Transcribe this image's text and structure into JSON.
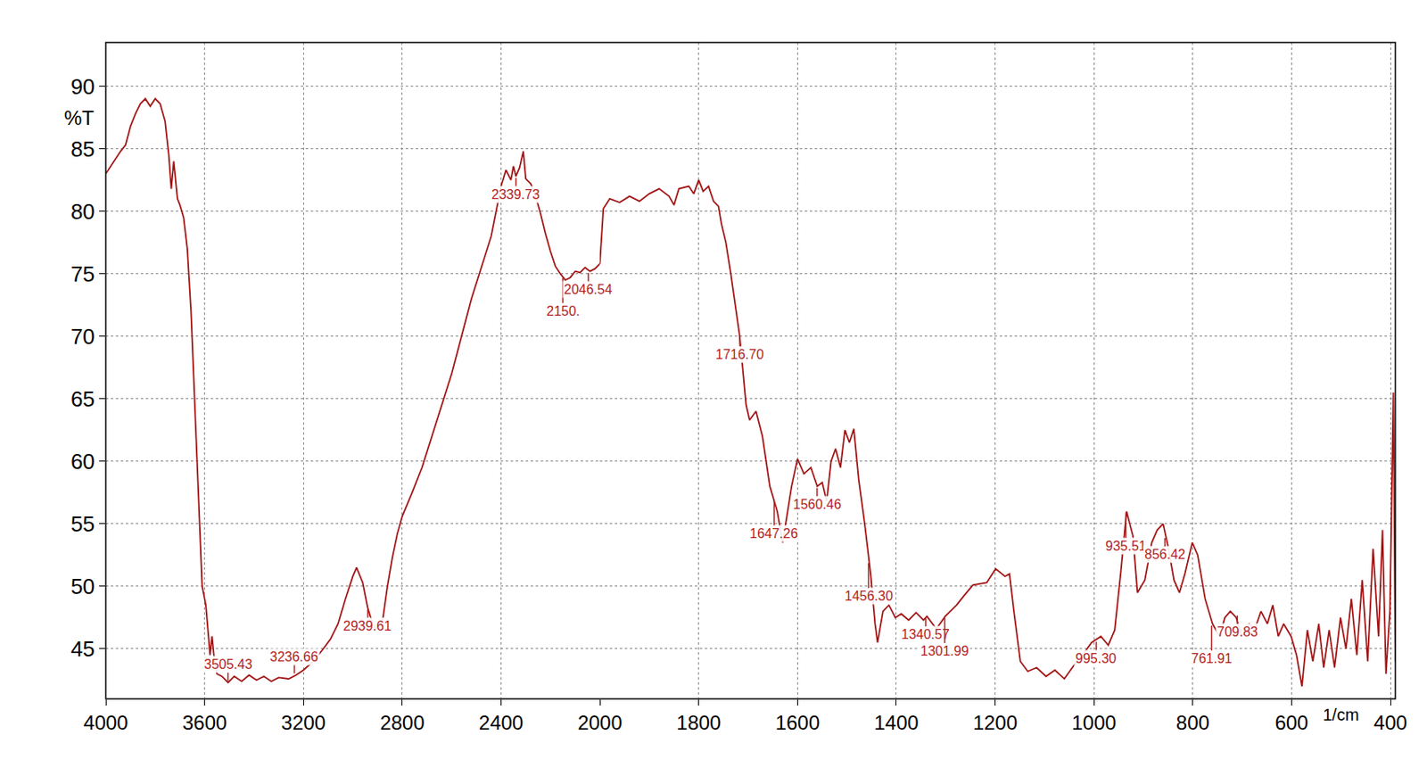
{
  "chart_data": {
    "type": "line",
    "x_label": "1/cm",
    "y_label": "%T",
    "xlim": [
      4000,
      390
    ],
    "ylim": [
      41,
      93.5
    ],
    "xticks": [
      4000,
      3600,
      3200,
      2800,
      2400,
      2000,
      1800,
      1600,
      1400,
      1200,
      1000,
      800,
      600,
      400
    ],
    "yticks": [
      45,
      50,
      55,
      60,
      65,
      70,
      75,
      80,
      85,
      90
    ],
    "grid": true,
    "color": "#a31515",
    "x": [
      4000,
      3980,
      3960,
      3940,
      3920,
      3900,
      3880,
      3860,
      3840,
      3820,
      3800,
      3780,
      3760,
      3745,
      3735,
      3725,
      3710,
      3700,
      3685,
      3670,
      3655,
      3640,
      3625,
      3610,
      3595,
      3585,
      3578,
      3570,
      3560,
      3550,
      3530,
      3505,
      3480,
      3450,
      3420,
      3390,
      3360,
      3330,
      3300,
      3260,
      3230,
      3200,
      3160,
      3120,
      3090,
      3060,
      3030,
      3000,
      2985,
      2960,
      2940,
      2920,
      2905,
      2880,
      2860,
      2840,
      2820,
      2800,
      2780,
      2760,
      2720,
      2680,
      2640,
      2600,
      2560,
      2520,
      2480,
      2440,
      2420,
      2400,
      2380,
      2360,
      2350,
      2340,
      2325,
      2310,
      2300,
      2280,
      2260,
      2240,
      2220,
      2200,
      2180,
      2160,
      2140,
      2120,
      2100,
      2080,
      2060,
      2040,
      2020,
      2000,
      1993,
      1980,
      1960,
      1940,
      1920,
      1900,
      1880,
      1860,
      1850,
      1840,
      1820,
      1810,
      1800,
      1791,
      1780,
      1770,
      1760,
      1754,
      1745,
      1735,
      1726,
      1717,
      1704,
      1697,
      1684,
      1671,
      1656,
      1641,
      1630,
      1622,
      1612,
      1600,
      1587,
      1573,
      1560,
      1550,
      1541,
      1532,
      1523,
      1513,
      1504,
      1495,
      1486,
      1476,
      1464,
      1452,
      1443,
      1438,
      1427,
      1415,
      1402,
      1390,
      1375,
      1360,
      1345,
      1338,
      1319,
      1301,
      1278,
      1264,
      1245,
      1217,
      1199,
      1180,
      1171,
      1162,
      1149,
      1134,
      1116,
      1097,
      1079,
      1060,
      1042,
      1023,
      1005,
      986,
      971,
      958,
      946,
      934,
      921,
      912,
      897,
      883,
      872,
      860,
      849,
      838,
      827,
      816,
      801,
      790,
      775,
      760,
      746,
      735,
      724,
      712,
      701,
      686,
      675,
      662,
      649,
      638,
      627,
      616,
      601,
      590,
      579,
      568,
      557,
      545,
      535,
      524,
      513,
      501,
      490,
      479,
      468,
      457,
      446,
      435,
      424,
      416,
      409,
      401,
      394,
      390
    ],
    "values": [
      83,
      83.6,
      84.2,
      84.8,
      85.3,
      86.8,
      87.8,
      88.6,
      89,
      88.4,
      89,
      88.6,
      87.2,
      84.5,
      81.8,
      84,
      81,
      80.5,
      79.5,
      77,
      72,
      65,
      57,
      50,
      48.5,
      46,
      44.5,
      46,
      44,
      43,
      42.8,
      42.3,
      42.8,
      42.4,
      42.9,
      42.5,
      42.8,
      42.4,
      42.7,
      42.6,
      42.9,
      43.3,
      44,
      45,
      45.8,
      47,
      49,
      50.8,
      51.5,
      50.3,
      48.3,
      47,
      46.6,
      47.2,
      50,
      52.3,
      54.2,
      55.6,
      56.5,
      57.5,
      59.5,
      62,
      64.5,
      67,
      70,
      73,
      75.5,
      78,
      80,
      82,
      83.3,
      82.5,
      83.6,
      82.8,
      83.5,
      84.8,
      82.6,
      82.2,
      81.2,
      79.8,
      78.2,
      76.8,
      75.6,
      75,
      74.5,
      74.7,
      75.2,
      75.1,
      75.5,
      75.2,
      75.4,
      75.8,
      80.2,
      81,
      80.7,
      81.2,
      80.8,
      81.4,
      81.8,
      81.2,
      80.5,
      81.8,
      82,
      81.4,
      82.5,
      81.6,
      82,
      80.8,
      80.4,
      79,
      77.5,
      75,
      72.5,
      70,
      64.5,
      63.3,
      64,
      62,
      58,
      56,
      53.5,
      55.5,
      58,
      60.2,
      59,
      59.5,
      58,
      58.3,
      56.8,
      60,
      61,
      59.5,
      62.5,
      61.5,
      62.6,
      58.5,
      55,
      51,
      47,
      45.5,
      48,
      48.5,
      47.5,
      47.8,
      47.3,
      47.9,
      47.3,
      47.6,
      46.6,
      47.6,
      48.5,
      49.2,
      50.1,
      50.3,
      51.4,
      50.8,
      51,
      48,
      44,
      43.2,
      43.5,
      42.8,
      43.3,
      42.6,
      43.6,
      44.5,
      45.5,
      46,
      45.3,
      46.5,
      51,
      56,
      54,
      49.5,
      50.5,
      53.5,
      54.5,
      55,
      53,
      50.5,
      49.5,
      51,
      53.5,
      52.5,
      49,
      47,
      46,
      47.5,
      48,
      47.5,
      46,
      47,
      46.5,
      48,
      47,
      48.5,
      46,
      47,
      46,
      44.5,
      42,
      46.5,
      44,
      47,
      43.5,
      46.5,
      43.5,
      47.5,
      45,
      49,
      44.5,
      50.5,
      44,
      53,
      46,
      54.5,
      43,
      48,
      65.5,
      44
    ],
    "annotations": [
      {
        "x": 3505.43,
        "y": 42.3,
        "text": "3505.43"
      },
      {
        "x": 3236.66,
        "y": 42.9,
        "text": "3236.66"
      },
      {
        "x": 2939.61,
        "y": 48.3,
        "text": "2939.61"
      },
      {
        "x": 2339.73,
        "y": 82.8,
        "text": "2339.73"
      },
      {
        "x": 2150,
        "y": 74.8,
        "text": "2150."
      },
      {
        "x": 2046.54,
        "y": 75.2,
        "text": "2046.54"
      },
      {
        "x": 1716.7,
        "y": 70,
        "text": "1716.70"
      },
      {
        "x": 1647.26,
        "y": 57,
        "text": "1647.26"
      },
      {
        "x": 1560.46,
        "y": 58,
        "text": "1560.46"
      },
      {
        "x": 1456.3,
        "y": 52,
        "text": "1456.30"
      },
      {
        "x": 1340.57,
        "y": 47.6,
        "text": "1340.57"
      },
      {
        "x": 1301.99,
        "y": 47.6,
        "text": "1301.99"
      },
      {
        "x": 995.3,
        "y": 45.7,
        "text": "995.30"
      },
      {
        "x": 935.51,
        "y": 56,
        "text": "935.51"
      },
      {
        "x": 856.42,
        "y": 54,
        "text": "856.42"
      },
      {
        "x": 761.91,
        "y": 47,
        "text": "761.91"
      },
      {
        "x": 709.83,
        "y": 47.8,
        "text": "709.83"
      }
    ]
  }
}
